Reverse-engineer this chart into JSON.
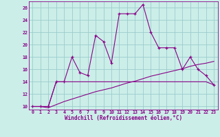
{
  "xlabel": "Windchill (Refroidissement éolien,°C)",
  "bg_color": "#cceee8",
  "line_color": "#880088",
  "grid_color": "#99cccc",
  "xlim": [
    -0.5,
    23.5
  ],
  "ylim": [
    9.5,
    27.0
  ],
  "yticks": [
    10,
    12,
    14,
    16,
    18,
    20,
    22,
    24,
    26
  ],
  "xticks": [
    0,
    1,
    2,
    3,
    4,
    5,
    6,
    7,
    8,
    9,
    10,
    11,
    12,
    13,
    14,
    15,
    16,
    17,
    18,
    19,
    20,
    21,
    22,
    23
  ],
  "series1_x": [
    0,
    1,
    2,
    3,
    4,
    5,
    6,
    7,
    8,
    9,
    10,
    11,
    12,
    13,
    14,
    15,
    16,
    17,
    18,
    19,
    20,
    21,
    22,
    23
  ],
  "series1_y": [
    10.0,
    10.0,
    10.0,
    14.0,
    14.0,
    18.0,
    15.5,
    15.0,
    21.5,
    20.5,
    17.0,
    25.0,
    25.0,
    25.0,
    26.5,
    22.0,
    19.5,
    19.5,
    19.5,
    16.0,
    18.0,
    16.0,
    15.0,
    13.5
  ],
  "series2_x": [
    0,
    1,
    2,
    3,
    4,
    5,
    6,
    7,
    8,
    9,
    10,
    11,
    12,
    13,
    14,
    15,
    16,
    17,
    18,
    19,
    20,
    21,
    22,
    23
  ],
  "series2_y": [
    10.0,
    10.0,
    9.8,
    10.3,
    10.8,
    11.2,
    11.6,
    12.0,
    12.4,
    12.7,
    13.0,
    13.4,
    13.8,
    14.1,
    14.5,
    14.9,
    15.2,
    15.5,
    15.8,
    16.1,
    16.5,
    16.8,
    17.0,
    17.3
  ],
  "series3_x": [
    0,
    1,
    2,
    3,
    4,
    5,
    6,
    7,
    8,
    9,
    10,
    11,
    12,
    13,
    14,
    15,
    16,
    17,
    18,
    19,
    20,
    21,
    22,
    23
  ],
  "series3_y": [
    10.0,
    10.0,
    10.0,
    14.0,
    14.0,
    14.0,
    14.0,
    14.0,
    14.0,
    14.0,
    14.0,
    14.0,
    14.0,
    14.0,
    14.0,
    14.0,
    14.0,
    14.0,
    14.0,
    14.0,
    14.0,
    14.0,
    14.0,
    13.5
  ]
}
